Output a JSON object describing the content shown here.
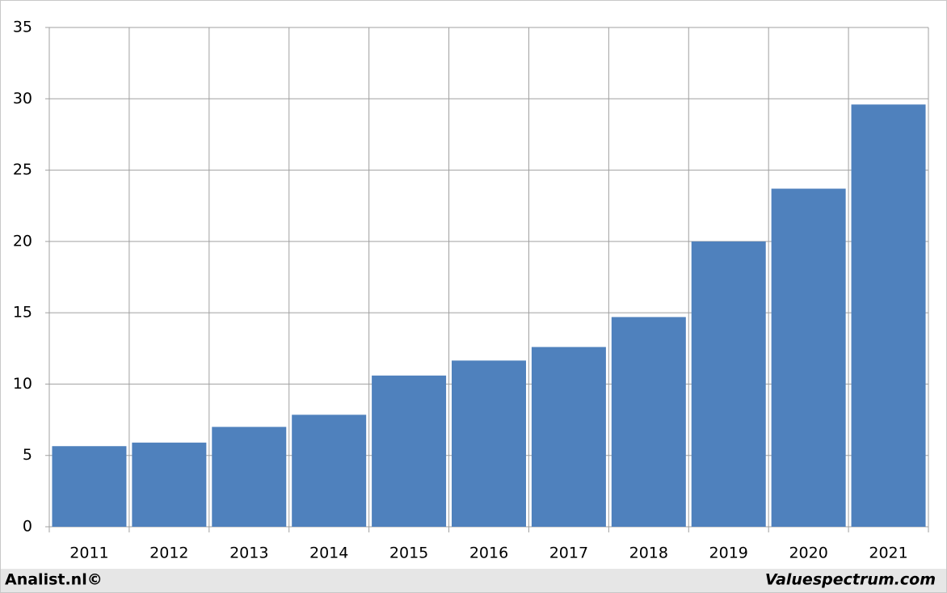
{
  "chart_data": {
    "type": "bar",
    "categories": [
      "2011",
      "2012",
      "2013",
      "2014",
      "2015",
      "2016",
      "2017",
      "2018",
      "2019",
      "2020",
      "2021"
    ],
    "values": [
      5.65,
      5.9,
      7.0,
      7.85,
      10.6,
      11.65,
      12.6,
      14.7,
      20.0,
      23.7,
      29.6
    ],
    "color": "#4f81bd",
    "ylim": [
      0,
      35
    ],
    "yticks": [
      0,
      5,
      10,
      15,
      20,
      25,
      30,
      35
    ],
    "grid": true
  },
  "footer": {
    "left": "Analist.nl©",
    "right": "Valuespectrum.com"
  }
}
